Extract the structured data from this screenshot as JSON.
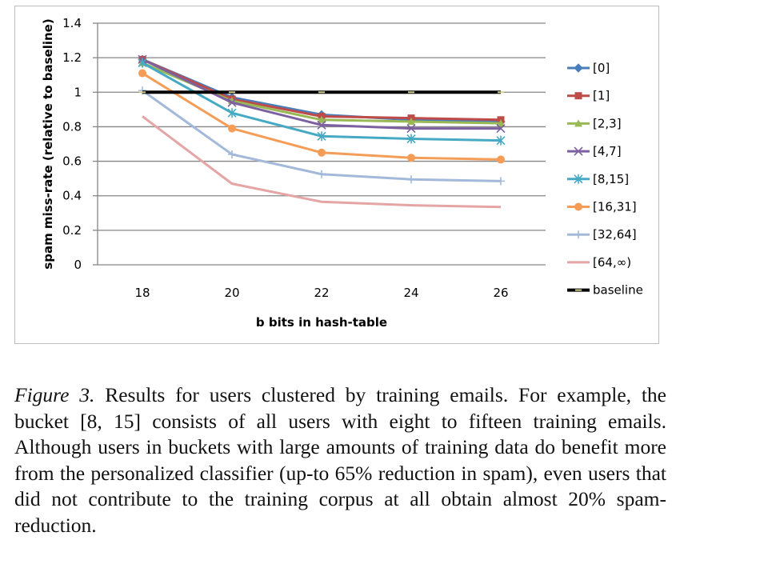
{
  "chart_data": {
    "type": "line",
    "title": "",
    "xlabel": "b bits in hash-table",
    "ylabel": "spam miss-rate (relative to baseline)",
    "x": [
      18,
      20,
      22,
      24,
      26
    ],
    "x_tick_labels": [
      "18",
      "20",
      "22",
      "24",
      "26"
    ],
    "ylim": [
      0,
      1.4
    ],
    "y_ticks": [
      0,
      0.2,
      0.4,
      0.6,
      0.8,
      1,
      1.2,
      1.4
    ],
    "y_tick_labels": [
      "0",
      "0.2",
      "0.4",
      "0.6",
      "0.8",
      "1",
      "1.2",
      "1.4"
    ],
    "grid": "horizontal",
    "legend_position": "right",
    "series": [
      {
        "name": "[0]",
        "color": "#4a7ebb",
        "marker": "diamond",
        "values": [
          1.19,
          0.97,
          0.87,
          0.84,
          0.83
        ]
      },
      {
        "name": "[1]",
        "color": "#be4b48",
        "marker": "square",
        "values": [
          1.19,
          0.96,
          0.86,
          0.85,
          0.84
        ]
      },
      {
        "name": "[2,3]",
        "color": "#98b954",
        "marker": "triangle",
        "values": [
          1.17,
          0.95,
          0.84,
          0.83,
          0.82
        ]
      },
      {
        "name": "[4,7]",
        "color": "#7d60a0",
        "marker": "x",
        "values": [
          1.19,
          0.94,
          0.81,
          0.79,
          0.79
        ]
      },
      {
        "name": "[8,15]",
        "color": "#46aac4",
        "marker": "asterisk",
        "values": [
          1.17,
          0.88,
          0.745,
          0.73,
          0.72
        ]
      },
      {
        "name": "[16,31]",
        "color": "#f59d56",
        "marker": "circle",
        "values": [
          1.11,
          0.79,
          0.65,
          0.62,
          0.61
        ]
      },
      {
        "name": "[32,64]",
        "color": "#a2b9da",
        "marker": "plus",
        "values": [
          1.01,
          0.64,
          0.525,
          0.495,
          0.485
        ]
      },
      {
        "name": "[64,∞)",
        "color": "#e4a5a4",
        "marker": "none",
        "values": [
          0.86,
          0.47,
          0.365,
          0.345,
          0.335
        ]
      },
      {
        "name": "baseline",
        "color": "#000000",
        "marker": "dash",
        "values": [
          1,
          1,
          1,
          1,
          1
        ]
      }
    ]
  },
  "caption": {
    "label": "Figure 3.",
    "text": "Results for users clustered by training emails. For example, the bucket [8, 15] consists of all users with eight to fifteen training emails. Although users in buckets with large amounts of training data do benefit more from the personalized classifier (up-to 65% reduction in spam), even users that did not contribute to the training corpus at all obtain almost 20% spam-reduction."
  }
}
